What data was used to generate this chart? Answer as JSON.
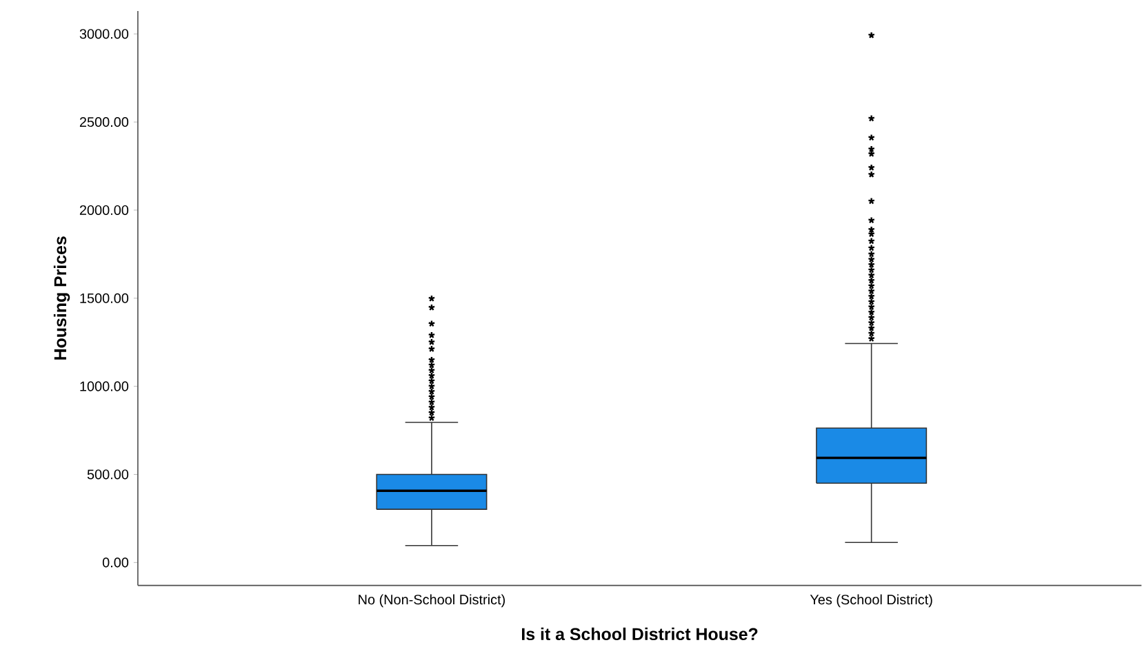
{
  "chart_data": {
    "type": "box",
    "xlabel": "Is it a School District House?",
    "ylabel": "Housing Prices",
    "categories": [
      "No (Non-School District)",
      "Yes (School District)"
    ],
    "color": "#1a8ae6",
    "marker": "star",
    "grid": false,
    "ylim": [
      -130,
      3130
    ],
    "yticks": [
      {
        "value": 0,
        "label": "0.00"
      },
      {
        "value": 500,
        "label": "500.00"
      },
      {
        "value": 1000,
        "label": "1000.00"
      },
      {
        "value": 1500,
        "label": "1500.00"
      },
      {
        "value": 2000,
        "label": "2000.00"
      },
      {
        "value": 2500,
        "label": "2500.00"
      },
      {
        "value": 3000,
        "label": "3000.00"
      }
    ],
    "boxes": [
      {
        "low": 96,
        "q1": 302,
        "median": 407,
        "q3": 500,
        "high": 795,
        "outliers": [
          820,
          850,
          880,
          910,
          940,
          970,
          1000,
          1030,
          1060,
          1090,
          1120,
          1150,
          1212,
          1251,
          1290,
          1355,
          1447,
          1498
        ]
      },
      {
        "low": 114,
        "q1": 450,
        "median": 594,
        "q3": 763,
        "high": 1243,
        "outliers": [
          1270,
          1300,
          1330,
          1360,
          1390,
          1420,
          1450,
          1480,
          1510,
          1540,
          1570,
          1600,
          1630,
          1660,
          1690,
          1720,
          1750,
          1785,
          1824,
          1864,
          1889,
          1942,
          2051,
          2202,
          2241,
          2319,
          2346,
          2411,
          2520,
          2992
        ]
      }
    ]
  }
}
